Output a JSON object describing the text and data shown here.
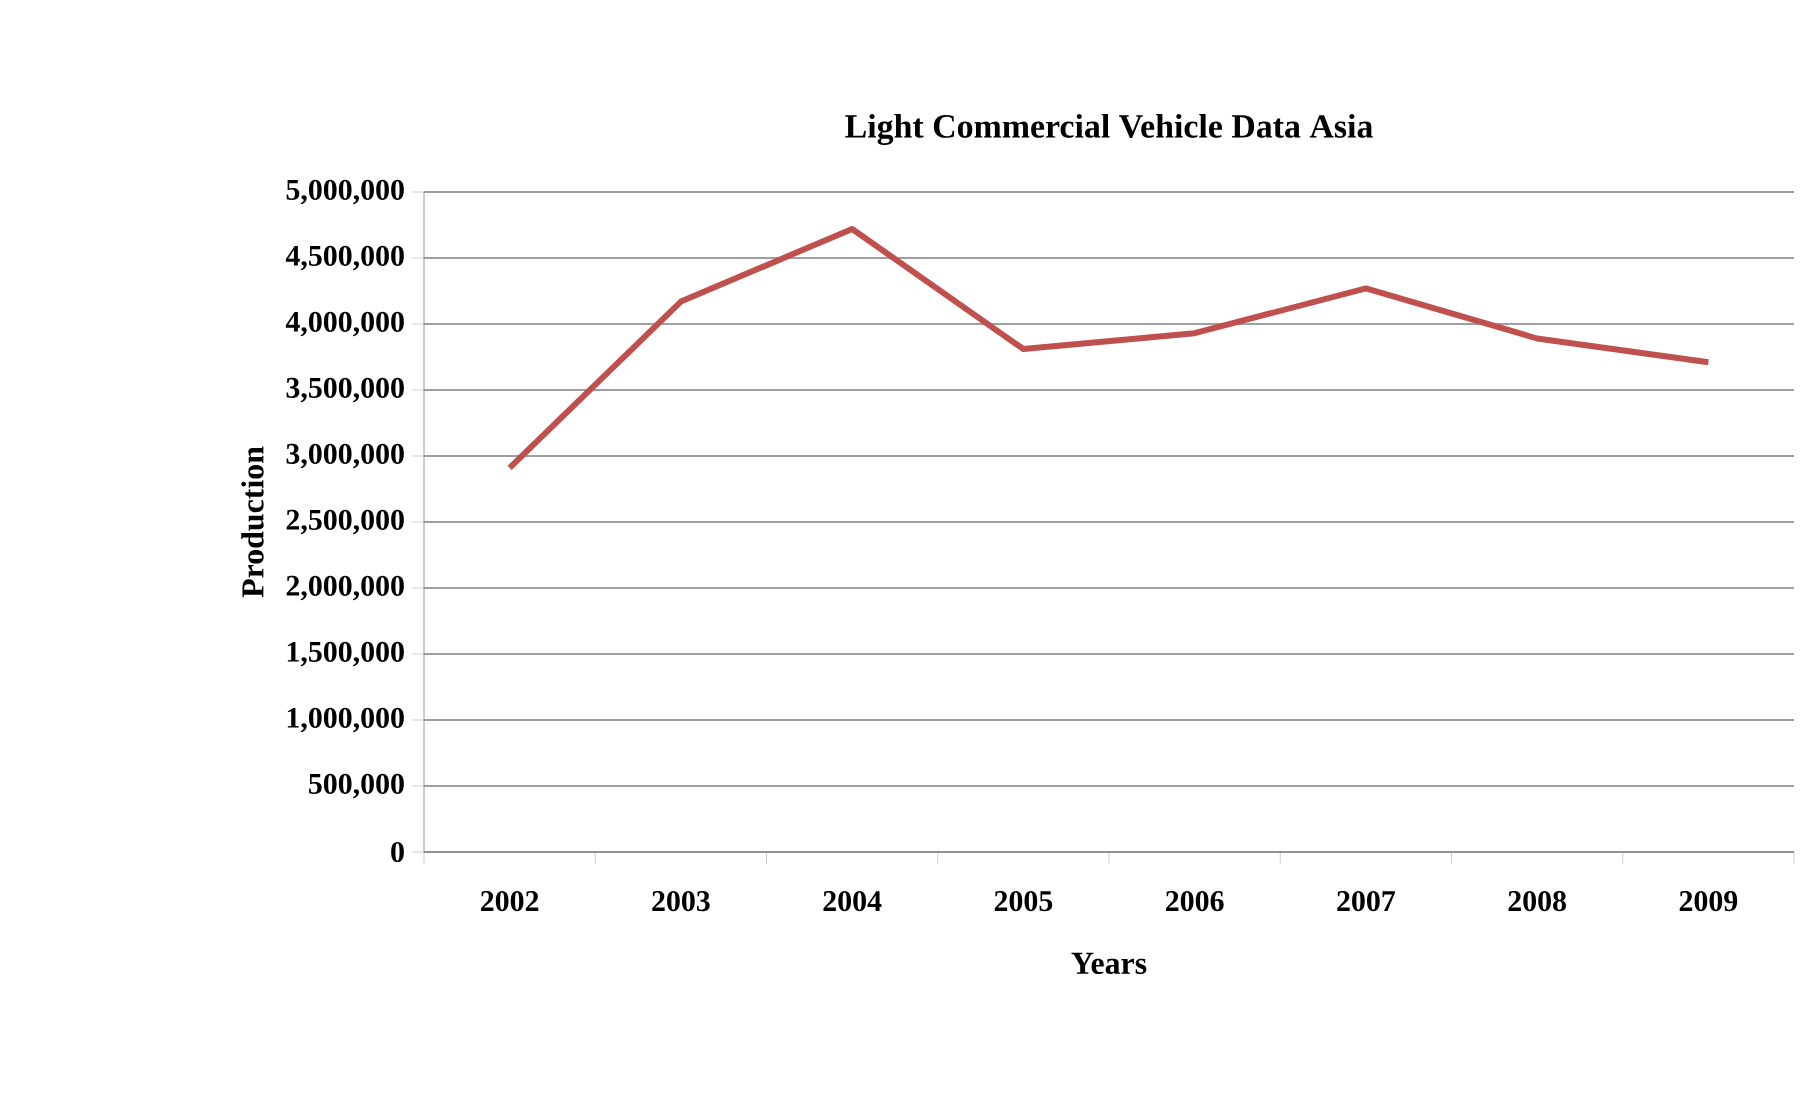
{
  "chart_data": {
    "type": "line",
    "title": "Light Commercial Vehicle Data Asia",
    "xlabel": "Years",
    "ylabel": "Production",
    "categories": [
      "2002",
      "2003",
      "2004",
      "2005",
      "2006",
      "2007",
      "2008",
      "2009"
    ],
    "series": [
      {
        "color": "#c0504d",
        "values": [
          2910000,
          4170000,
          4720000,
          3810000,
          3930000,
          4270000,
          3890000,
          3710000
        ]
      }
    ],
    "ylim": [
      0,
      5000000
    ],
    "yticks": [
      {
        "value": 0,
        "label": "0"
      },
      {
        "value": 500000,
        "label": "500,000"
      },
      {
        "value": 1000000,
        "label": "1,000,000"
      },
      {
        "value": 1500000,
        "label": "1,500,000"
      },
      {
        "value": 2000000,
        "label": "2,000,000"
      },
      {
        "value": 2500000,
        "label": "2,500,000"
      },
      {
        "value": 3000000,
        "label": "3,000,000"
      },
      {
        "value": 3500000,
        "label": "3,500,000"
      },
      {
        "value": 4000000,
        "label": "4,000,000"
      },
      {
        "value": 4500000,
        "label": "4,500,000"
      },
      {
        "value": 5000000,
        "label": "5,000,000"
      }
    ],
    "grid": "y",
    "legend": false,
    "marker": "none",
    "line_style": "solid"
  }
}
